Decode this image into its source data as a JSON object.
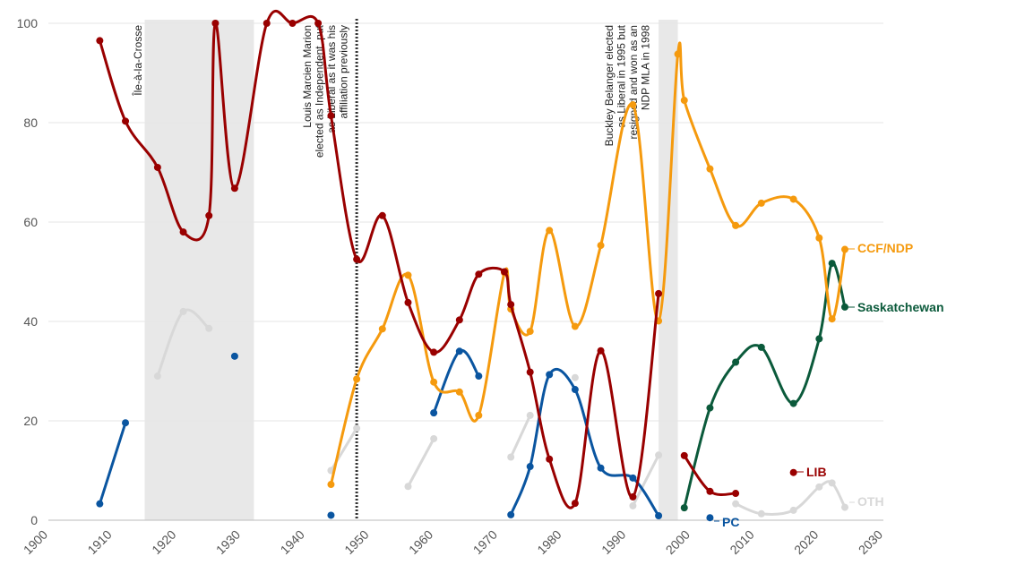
{
  "chart_data": {
    "type": "line",
    "title": "",
    "xlabel": "",
    "ylabel": "",
    "xlim": [
      1900,
      2030
    ],
    "ylim": [
      0,
      100
    ],
    "x_ticks": [
      "1900",
      "1910",
      "1920",
      "1930",
      "1940",
      "1950",
      "1960",
      "1970",
      "1980",
      "1990",
      "2000",
      "2010",
      "2020",
      "2030"
    ],
    "y_ticks": [
      "0",
      "20",
      "40",
      "60",
      "80",
      "100"
    ],
    "grid": "horizontal",
    "shaded_periods": [
      {
        "start": 1915,
        "end": 1932
      },
      {
        "start": 1995,
        "end": 1998
      }
    ],
    "boundary_markers": [
      {
        "x": 1948,
        "style": "dotted"
      }
    ],
    "annotations": [
      {
        "x": 1916,
        "text": "Île-à-la-Crosse"
      },
      {
        "x": 1947,
        "text": "Louis Marcien Marion elected as Independent, put as Liberal as it was his affiliation previously"
      },
      {
        "x": 1994,
        "text": "Buckley Belanger elected as Liberal in 1995 but resigned and won as an NDP MLA in 1998"
      }
    ],
    "series": [
      {
        "name": "LIB",
        "color": "#990000",
        "points": [
          [
            1908,
            96.5
          ],
          [
            1912,
            80.3
          ],
          [
            1917,
            71
          ],
          [
            1921,
            58
          ],
          [
            1925,
            61.3
          ],
          [
            1926,
            100
          ],
          [
            1929,
            66.8
          ],
          [
            1934,
            100
          ],
          [
            1938,
            100
          ],
          [
            1942,
            100
          ],
          [
            1944,
            81.4
          ],
          [
            1948,
            52.5
          ],
          [
            1952,
            61.3
          ],
          [
            1956,
            43.8
          ],
          [
            1960,
            33.8
          ],
          [
            1964,
            40.3
          ],
          [
            1967,
            49.5
          ],
          [
            1971,
            50
          ],
          [
            1972,
            43.4
          ],
          [
            1975,
            29.8
          ],
          [
            1978,
            12.3
          ],
          [
            1982,
            3.4
          ],
          [
            1986,
            34.1
          ],
          [
            1991,
            4.7
          ],
          [
            1995,
            45.6
          ],
          [
            null,
            null
          ],
          [
            1999,
            13
          ],
          [
            2003,
            5.8
          ],
          [
            2007,
            5.4
          ],
          [
            null,
            null
          ],
          [
            2016,
            9.6
          ]
        ]
      },
      {
        "name": "CCF/NDP",
        "color": "#f59a0e",
        "points": [
          [
            1944,
            7.2
          ],
          [
            1948,
            28.4
          ],
          [
            1952,
            38.5
          ],
          [
            1956,
            49.3
          ],
          [
            1960,
            27.8
          ],
          [
            1964,
            25.8
          ],
          [
            1967,
            21.1
          ],
          [
            1971,
            49.8
          ],
          [
            1972,
            42.5
          ],
          [
            1975,
            38
          ],
          [
            1978,
            58.3
          ],
          [
            1982,
            39
          ],
          [
            1986,
            55.3
          ],
          [
            1991,
            83.6
          ],
          [
            1995,
            40.1
          ],
          [
            1998,
            93.8
          ],
          [
            1999,
            84.5
          ],
          [
            2003,
            70.7
          ],
          [
            2007,
            59.3
          ],
          [
            2011,
            63.8
          ],
          [
            2016,
            64.6
          ],
          [
            2020,
            56.8
          ],
          [
            2022,
            40.5
          ],
          [
            2024,
            54.5
          ]
        ]
      },
      {
        "name": "Saskatchewan",
        "color": "#0b5a3b",
        "points": [
          [
            1999,
            2.5
          ],
          [
            2003,
            22.6
          ],
          [
            2007,
            31.8
          ],
          [
            2011,
            34.8
          ],
          [
            2016,
            23.5
          ],
          [
            2020,
            36.5
          ],
          [
            2022,
            51.7
          ],
          [
            2024,
            42.9
          ]
        ]
      },
      {
        "name": "PC",
        "color": "#0a55a0",
        "points": [
          [
            1908,
            3.3
          ],
          [
            1912,
            19.6
          ],
          [
            null,
            null
          ],
          [
            1929,
            33
          ],
          [
            null,
            null
          ],
          [
            1944,
            1
          ],
          [
            null,
            null
          ],
          [
            1960,
            21.6
          ],
          [
            1964,
            34
          ],
          [
            1967,
            29
          ],
          [
            null,
            null
          ],
          [
            1972,
            1.1
          ],
          [
            1975,
            10.8
          ],
          [
            1978,
            29.3
          ],
          [
            1982,
            26.3
          ],
          [
            1986,
            10.5
          ],
          [
            1991,
            8.5
          ],
          [
            1995,
            0.9
          ],
          [
            null,
            null
          ],
          [
            2003,
            0.5
          ]
        ]
      },
      {
        "name": "OTH",
        "color": "#d8d8d8",
        "points": [
          [
            1917,
            29
          ],
          [
            1921,
            42
          ],
          [
            1925,
            38.6
          ],
          [
            null,
            null
          ],
          [
            1944,
            10
          ],
          [
            1948,
            18.5
          ],
          [
            null,
            null
          ],
          [
            1956,
            6.8
          ],
          [
            1960,
            16.4
          ],
          [
            null,
            null
          ],
          [
            1972,
            12.7
          ],
          [
            1975,
            21.1
          ],
          [
            null,
            null
          ],
          [
            1982,
            28.7
          ],
          [
            null,
            null
          ],
          [
            1991,
            2.9
          ],
          [
            1995,
            13.1
          ],
          [
            null,
            null
          ],
          [
            2007,
            3.3
          ],
          [
            2011,
            1.3
          ],
          [
            2016,
            2
          ],
          [
            2020,
            6.7
          ],
          [
            2022,
            7.5
          ],
          [
            2024,
            2.6
          ]
        ]
      }
    ],
    "end_labels": [
      "CCF/NDP",
      "Saskatchewan",
      "LIB",
      "OTH",
      "PC"
    ]
  }
}
